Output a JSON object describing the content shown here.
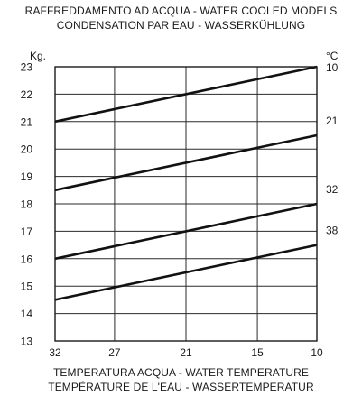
{
  "title_lines": [
    "RAFFREDDAMENTO AD ACQUA - WATER COOLED MODELS",
    "CONDENSATION PAR EAU - WASSERKÜHLUNG"
  ],
  "xlabel_lines": [
    "TEMPERATURA ACQUA - WATER TEMPERATURE",
    "TEMPÉRATURE DE L'EAU - WASSERTEMPERATUR"
  ],
  "chart_data": {
    "type": "line",
    "title": "RAFFREDDAMENTO AD ACQUA - WATER COOLED MODELS / CONDENSATION PAR EAU - WASSERKÜHLUNG",
    "xlabel": "TEMPERATURA ACQUA - WATER TEMPERATURE / TEMPÉRATURE DE L'EAU - WASSERTEMPERATUR",
    "ylabel": "Kg.",
    "series_unit": "°C",
    "x_ticks": [
      "32",
      "27",
      "21",
      "15",
      "10"
    ],
    "x_range": [
      32,
      10
    ],
    "ylim": [
      13,
      23
    ],
    "y_ticks": [
      "13",
      "14",
      "15",
      "16",
      "17",
      "18",
      "19",
      "20",
      "21",
      "22",
      "23"
    ],
    "grid": true,
    "series": [
      {
        "name": "10",
        "x": [
          32,
          10
        ],
        "values": [
          21,
          23
        ]
      },
      {
        "name": "21",
        "x": [
          32,
          10
        ],
        "values": [
          18.5,
          20.5
        ]
      },
      {
        "name": "32",
        "x": [
          32,
          10
        ],
        "values": [
          16,
          18
        ]
      },
      {
        "name": "38",
        "x": [
          32,
          10
        ],
        "values": [
          14.5,
          16.5
        ]
      }
    ]
  }
}
